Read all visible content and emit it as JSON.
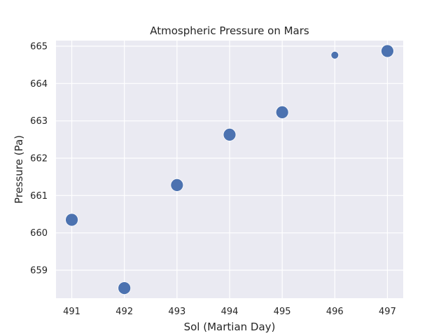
{
  "chart_data": {
    "type": "scatter",
    "title": "Atmospheric Pressure on Mars",
    "xlabel": "Sol (Martian Day)",
    "ylabel": "Pressure (Pa)",
    "x": [
      491,
      492,
      493,
      494,
      495,
      496,
      497
    ],
    "y": [
      660.35,
      658.52,
      661.28,
      662.63,
      663.23,
      664.76,
      664.87
    ],
    "point_size_relative": [
      1.0,
      1.0,
      1.0,
      1.0,
      1.0,
      0.45,
      1.0
    ],
    "xlim": [
      490.7,
      497.3
    ],
    "ylim": [
      658.25,
      665.15
    ],
    "xticks": [
      491,
      492,
      493,
      494,
      495,
      496,
      497
    ],
    "yticks": [
      659,
      660,
      661,
      662,
      663,
      664,
      665
    ],
    "grid": true,
    "colors": {
      "background": "#eaeaf2",
      "grid": "#ffffff",
      "marker": "#4c72b0",
      "marker_edge": "#ffffff",
      "text": "#262626"
    }
  }
}
